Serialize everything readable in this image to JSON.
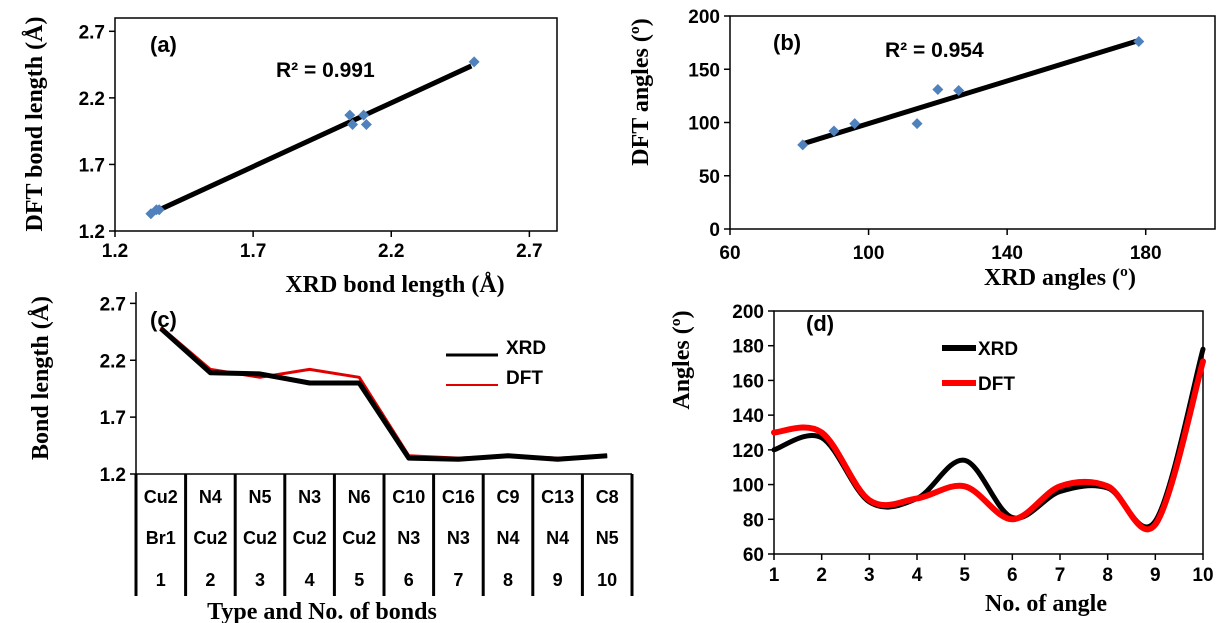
{
  "chart_data": [
    {
      "panel": "(a)",
      "type": "scatter",
      "xlabel": "XRD bond length (Å)",
      "ylabel": "DFT bond length (Å)",
      "xlim": [
        1.2,
        2.8
      ],
      "ylim": [
        1.2,
        2.8
      ],
      "xticks": [
        "1.2",
        "1.7",
        "2.2",
        "2.7"
      ],
      "yticks": [
        "1.2",
        "1.7",
        "2.2",
        "2.7"
      ],
      "annotation": "R² = 0.991",
      "points": [
        {
          "x": 1.33,
          "y": 1.33
        },
        {
          "x": 1.35,
          "y": 1.36
        },
        {
          "x": 1.36,
          "y": 1.36
        },
        {
          "x": 2.05,
          "y": 2.07
        },
        {
          "x": 2.06,
          "y": 2.0
        },
        {
          "x": 2.1,
          "y": 2.07
        },
        {
          "x": 2.11,
          "y": 2.0
        },
        {
          "x": 2.5,
          "y": 2.47
        }
      ],
      "trendline": {
        "x": [
          1.33,
          2.49
        ],
        "y": [
          1.33,
          2.44
        ]
      }
    },
    {
      "panel": "(b)",
      "type": "scatter",
      "xlabel": "XRD angles (º)",
      "ylabel": "DFT angles (º)",
      "xlim": [
        60,
        200
      ],
      "ylim": [
        0,
        200
      ],
      "xticks": [
        "60",
        "100",
        "140",
        "180"
      ],
      "yticks": [
        "0",
        "50",
        "100",
        "150",
        "200"
      ],
      "annotation": "R² = 0.954",
      "points": [
        {
          "x": 81,
          "y": 79
        },
        {
          "x": 90,
          "y": 92
        },
        {
          "x": 96,
          "y": 99
        },
        {
          "x": 114,
          "y": 99
        },
        {
          "x": 120,
          "y": 131
        },
        {
          "x": 126,
          "y": 130
        },
        {
          "x": 178,
          "y": 176
        }
      ],
      "trendline": {
        "x": [
          81,
          178
        ],
        "y": [
          80,
          177
        ]
      }
    },
    {
      "panel": "(c)",
      "type": "line",
      "xlabel": "Type and No. of bonds",
      "ylabel": "Bond length (Å)",
      "ylim": [
        1.2,
        2.8
      ],
      "yticks": [
        "1.2",
        "1.7",
        "2.2",
        "2.7"
      ],
      "categories": [
        {
          "top": "Cu2",
          "mid": "Br1",
          "num": "1"
        },
        {
          "top": "N4",
          "mid": "Cu2",
          "num": "2"
        },
        {
          "top": "N5",
          "mid": "Cu2",
          "num": "3"
        },
        {
          "top": "N3",
          "mid": "Cu2",
          "num": "4"
        },
        {
          "top": "N6",
          "mid": "Cu2",
          "num": "5"
        },
        {
          "top": "C10",
          "mid": "N3",
          "num": "6"
        },
        {
          "top": "C16",
          "mid": "N3",
          "num": "7"
        },
        {
          "top": "C9",
          "mid": "N4",
          "num": "8"
        },
        {
          "top": "C13",
          "mid": "N4",
          "num": "9"
        },
        {
          "top": "C8",
          "mid": "N5",
          "num": "10"
        }
      ],
      "series": [
        {
          "name": "XRD",
          "color": "#000000",
          "values": [
            2.48,
            2.09,
            2.08,
            2.0,
            2.0,
            1.34,
            1.33,
            1.36,
            1.33,
            1.36
          ]
        },
        {
          "name": "DFT",
          "color": "#e00000",
          "values": [
            2.49,
            2.12,
            2.05,
            2.12,
            2.05,
            1.36,
            1.34,
            1.36,
            1.34,
            1.36
          ]
        }
      ]
    },
    {
      "panel": "(d)",
      "type": "line",
      "xlabel": "No. of angle",
      "ylabel": "Angles (º)",
      "ylim": [
        60,
        200
      ],
      "yticks": [
        "60",
        "80",
        "100",
        "120",
        "140",
        "160",
        "180",
        "200"
      ],
      "x": [
        1,
        2,
        3,
        4,
        5,
        6,
        7,
        8,
        9,
        10
      ],
      "series": [
        {
          "name": "XRD",
          "color": "#000000",
          "values": [
            120,
            127,
            90,
            92,
            114,
            81,
            96,
            98,
            79,
            178
          ]
        },
        {
          "name": "DFT",
          "color": "#ff0000",
          "values": [
            130,
            130,
            91,
            92,
            99,
            80,
            99,
            99,
            77,
            171
          ]
        }
      ]
    }
  ]
}
